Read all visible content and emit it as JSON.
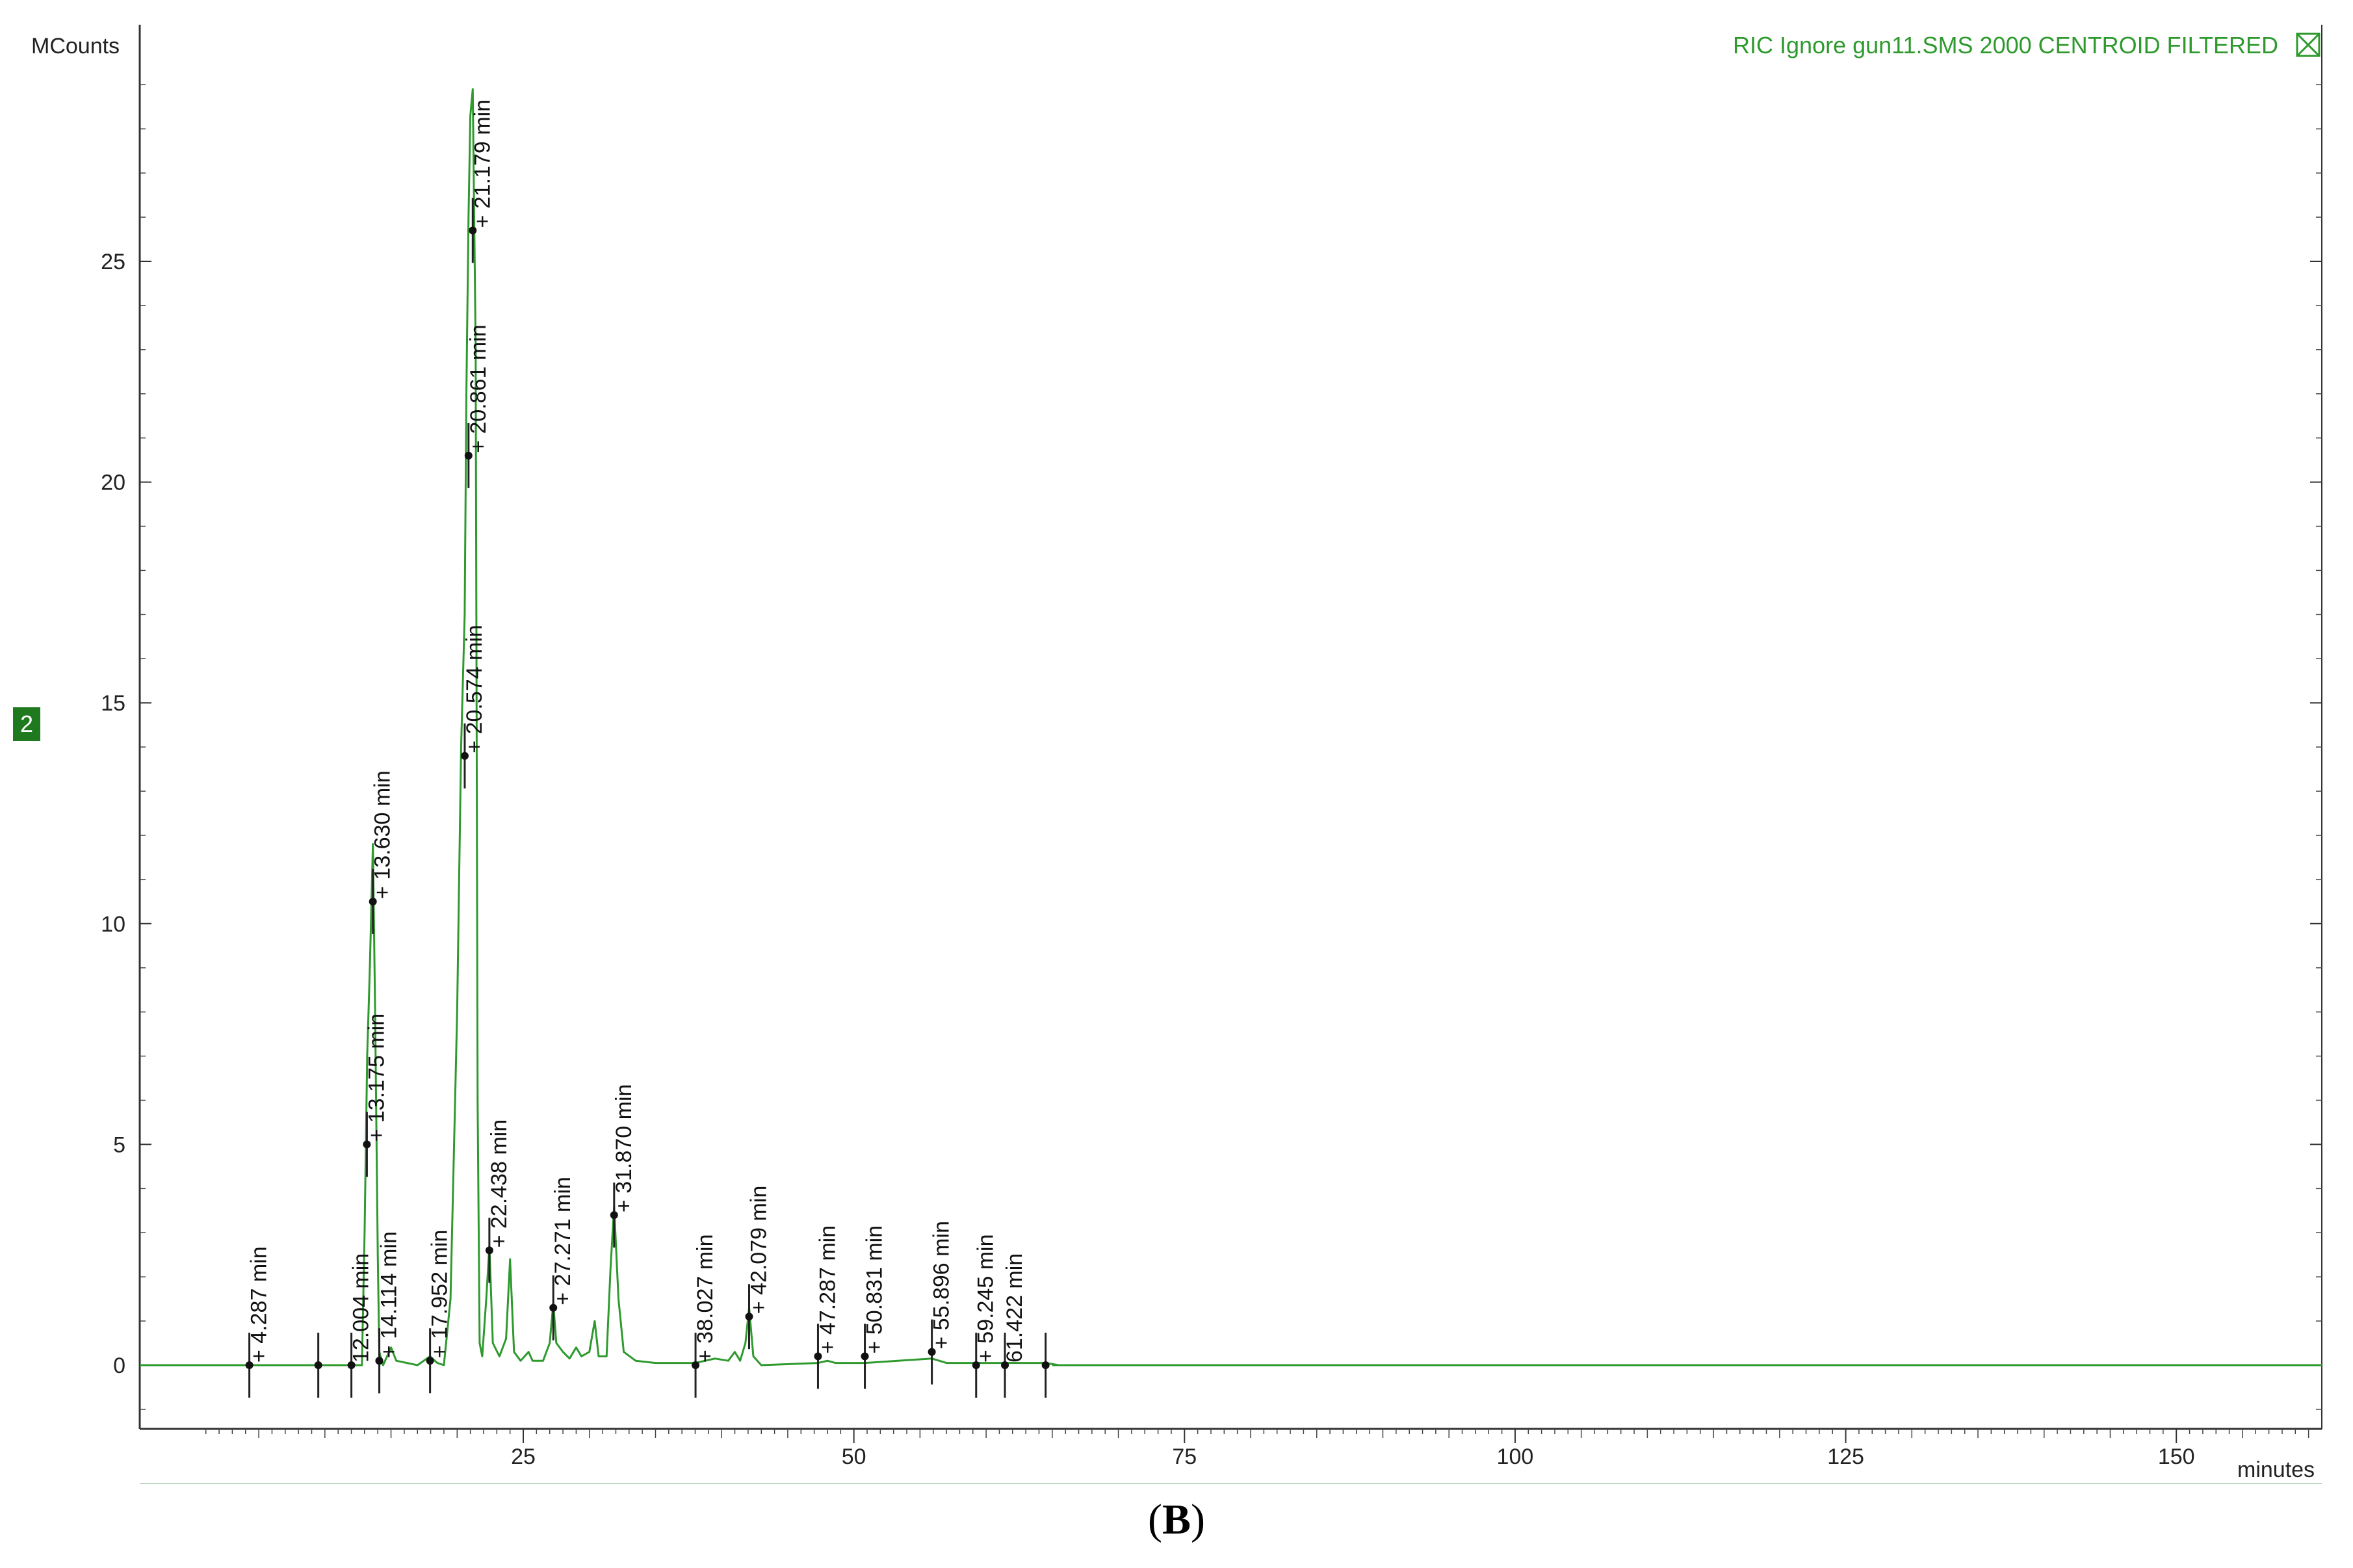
{
  "chart_data": {
    "type": "line",
    "title": "",
    "ylabel": "MCounts",
    "xlabel": "minutes",
    "xlim": [
      -4,
      161
    ],
    "ylim": [
      -1.5,
      30.3
    ],
    "xticks": [
      25,
      50,
      75,
      100,
      125,
      150
    ],
    "yticks": [
      0,
      5,
      10,
      15,
      20,
      25
    ],
    "legend": "RIC Ignore gun11.SMS 2000 CENTROID FILTERED",
    "legend_position": "top-right",
    "trace_badge": "2",
    "trace_color": "#2e9a2e",
    "series": [
      {
        "name": "RIC Ignore gun11.SMS 2000 CENTROID FILTERED",
        "points": [
          [
            -4,
            0
          ],
          [
            4.1,
            0
          ],
          [
            4.3,
            0.05
          ],
          [
            4.6,
            0
          ],
          [
            11.8,
            0
          ],
          [
            12.0,
            0.05
          ],
          [
            12.3,
            0
          ],
          [
            12.8,
            0
          ],
          [
            13.0,
            3
          ],
          [
            13.2,
            7
          ],
          [
            13.4,
            9
          ],
          [
            13.63,
            11.8
          ],
          [
            13.8,
            8
          ],
          [
            14.0,
            2.5
          ],
          [
            14.11,
            0.3
          ],
          [
            14.4,
            0
          ],
          [
            15.0,
            0.4
          ],
          [
            15.4,
            0.1
          ],
          [
            17.0,
            0
          ],
          [
            17.95,
            0.2
          ],
          [
            18.5,
            0.05
          ],
          [
            19.0,
            0
          ],
          [
            19.5,
            1.5
          ],
          [
            20.0,
            8
          ],
          [
            20.3,
            14
          ],
          [
            20.57,
            17
          ],
          [
            20.7,
            22
          ],
          [
            20.861,
            26
          ],
          [
            21.0,
            28.3
          ],
          [
            21.179,
            28.9
          ],
          [
            21.4,
            23
          ],
          [
            21.55,
            6
          ],
          [
            21.7,
            0.5
          ],
          [
            21.9,
            0.2
          ],
          [
            22.2,
            1.5
          ],
          [
            22.44,
            2.7
          ],
          [
            22.7,
            0.5
          ],
          [
            23.2,
            0.2
          ],
          [
            23.7,
            0.6
          ],
          [
            24.0,
            2.4
          ],
          [
            24.3,
            0.3
          ],
          [
            24.8,
            0.1
          ],
          [
            25.4,
            0.3
          ],
          [
            25.7,
            0.1
          ],
          [
            26.5,
            0.1
          ],
          [
            27.0,
            0.5
          ],
          [
            27.27,
            1.4
          ],
          [
            27.5,
            0.5
          ],
          [
            28.0,
            0.3
          ],
          [
            28.5,
            0.15
          ],
          [
            29.0,
            0.4
          ],
          [
            29.4,
            0.2
          ],
          [
            30.0,
            0.3
          ],
          [
            30.4,
            1.0
          ],
          [
            30.7,
            0.2
          ],
          [
            31.3,
            0.2
          ],
          [
            31.6,
            2.2
          ],
          [
            31.87,
            3.6
          ],
          [
            32.2,
            1.5
          ],
          [
            32.6,
            0.3
          ],
          [
            33.5,
            0.1
          ],
          [
            35,
            0.05
          ],
          [
            38.0,
            0.05
          ],
          [
            39.5,
            0.15
          ],
          [
            40.5,
            0.1
          ],
          [
            41.0,
            0.3
          ],
          [
            41.4,
            0.1
          ],
          [
            41.8,
            0.5
          ],
          [
            42.08,
            1.3
          ],
          [
            42.4,
            0.2
          ],
          [
            43,
            0
          ],
          [
            47.29,
            0.05
          ],
          [
            48,
            0.1
          ],
          [
            48.6,
            0.05
          ],
          [
            50.83,
            0.05
          ],
          [
            55.9,
            0.15
          ],
          [
            57,
            0.05
          ],
          [
            59.25,
            0.05
          ],
          [
            61.42,
            0.05
          ],
          [
            64.5,
            0.05
          ],
          [
            65.5,
            0
          ],
          [
            161,
            0
          ]
        ]
      }
    ],
    "peak_annotations": [
      {
        "label": "+ 4.287 min",
        "x": 4.287,
        "y": 0.0
      },
      {
        "label": "12.004 min",
        "x": 12.004,
        "y": 0.0
      },
      {
        "label": "+ 13.175 min",
        "x": 13.175,
        "y": 5.0
      },
      {
        "label": "+ 13.630 min",
        "x": 13.63,
        "y": 10.5
      },
      {
        "label": "+ 14.114 min",
        "x": 14.114,
        "y": 0.1
      },
      {
        "label": "+ 17.952 min",
        "x": 17.952,
        "y": 0.1
      },
      {
        "label": "+ 20.574 min",
        "x": 20.574,
        "y": 13.8
      },
      {
        "label": "+ 20.861 min",
        "x": 20.861,
        "y": 20.6
      },
      {
        "label": "+ 21.179 min",
        "x": 21.179,
        "y": 25.7
      },
      {
        "label": "+ 22.438 min",
        "x": 22.438,
        "y": 2.6
      },
      {
        "label": "+ 27.271 min",
        "x": 27.271,
        "y": 1.3
      },
      {
        "label": "+ 31.870 min",
        "x": 31.87,
        "y": 3.4
      },
      {
        "label": "+ 38.027 min",
        "x": 38.027,
        "y": 0.0
      },
      {
        "label": "+ 42.079 min",
        "x": 42.079,
        "y": 1.1
      },
      {
        "label": "+ 47.287 min",
        "x": 47.287,
        "y": 0.2
      },
      {
        "label": "+ 50.831 min",
        "x": 50.831,
        "y": 0.2
      },
      {
        "label": "+ 55.896 min",
        "x": 55.896,
        "y": 0.3
      },
      {
        "label": "+ 59.245 min",
        "x": 59.245,
        "y": 0.0
      },
      {
        "label": "61.422 min",
        "x": 61.422,
        "y": 0.0
      }
    ],
    "extra_markers": [
      {
        "x": 9.5,
        "y": 0.0
      },
      {
        "x": 14.114,
        "y": 0.1
      },
      {
        "x": 64.5,
        "y": 0.0
      }
    ]
  },
  "caption": {
    "open": "(",
    "letter": "B",
    "close": ")"
  }
}
